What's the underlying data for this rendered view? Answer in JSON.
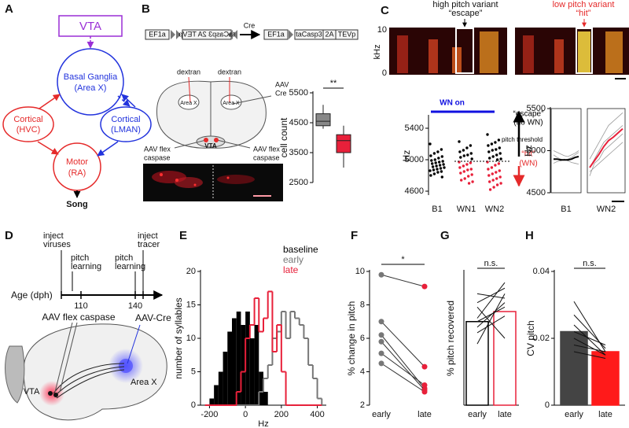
{
  "panel_labels": [
    "A",
    "B",
    "C",
    "D",
    "E",
    "F",
    "G",
    "H"
  ],
  "diagram_a": {
    "nodes": [
      "VTA",
      "Basal Ganglia",
      "(Area X)",
      "Cortical",
      "(HVC)",
      "Cortical",
      "(LMAN)",
      "Motor",
      "(RA)",
      "Song"
    ]
  },
  "panel_b": {
    "construct": [
      "EF1a",
      "taCasp3 2A TEVp",
      "Cre",
      "EF1a",
      "taCasp3",
      "2A",
      "TEVp"
    ],
    "labels": [
      "dextran",
      "dextran",
      "AAV",
      "Cre",
      "Area X",
      "Area X",
      "VTA",
      "AAV flex",
      "caspase",
      "AAV flex",
      "caspase"
    ]
  },
  "panel_c": {
    "labels": [
      "high pitch variant",
      "“escape”",
      "low pitch variant",
      "“hit”",
      "kHz",
      "10",
      "0"
    ]
  },
  "panel_d": {
    "labels": [
      "inject",
      "viruses",
      "pitch",
      "learning",
      "pitch",
      "learning",
      "inject",
      "tracer",
      "Age (dph)",
      "110",
      "140",
      "AAV flex caspase",
      "AAV-Cre",
      "VTA",
      "Area X"
    ]
  },
  "chart_data": [
    {
      "type": "box",
      "ylabel": "cell count",
      "annotation": "**",
      "ylim": [
        2500,
        5500
      ],
      "yticks": [
        2500,
        3500,
        4500,
        5500
      ],
      "boxes": [
        {
          "color": "#888888",
          "whislo": 4300,
          "q1": 4400,
          "med": 4550,
          "q3": 4800,
          "whishi": 5100
        },
        {
          "color": "#e8203a",
          "whislo": 3000,
          "q1": 3500,
          "med": 3900,
          "q3": 4100,
          "whishi": 4400
        }
      ]
    },
    {
      "type": "strip",
      "ylabel": "Hz",
      "ylim": [
        4550,
        5550
      ],
      "yticks": [
        4600,
        5000,
        5400
      ],
      "categories": [
        "B1",
        "WN1",
        "WN2"
      ],
      "threshold": 4980,
      "wn_color": "#1010e0",
      "annotations": [
        "WN on",
        "“escape”",
        "(no WN)",
        "pitch threshold",
        "“hit”",
        "(WN)"
      ],
      "series": [
        {
          "color": "#000000",
          "values": [
            [
              5200,
              5130,
              5100,
              5080,
              5050,
              5040,
              5020,
              5000,
              4990,
              4980,
              4970,
              4960,
              4950,
              4940,
              4930,
              4920,
              4910,
              4900,
              4890,
              4880,
              4870,
              4860,
              4850,
              4840,
              4820,
              4800,
              4780
            ],
            [
              5230,
              5180,
              5150,
              5120,
              5100,
              5080,
              5060,
              5050,
              5030,
              5010
            ],
            [
              5320,
              5250,
              5220,
              5200,
              5180,
              5150,
              5130,
              5120,
              5100,
              5080,
              5060,
              5040,
              5020,
              5010,
              5000
            ]
          ]
        },
        {
          "color": "#e8203a",
          "values": [
            [],
            [
              4970,
              4960,
              4940,
              4920,
              4900,
              4880,
              4870,
              4850,
              4830,
              4810,
              4790,
              4760,
              4740,
              4720,
              4700
            ],
            [
              4970,
              4950,
              4930,
              4900,
              4880,
              4860,
              4840,
              4820,
              4800,
              4780,
              4760,
              4740,
              4720,
              4700,
              4680,
              4650,
              4620
            ]
          ]
        }
      ]
    },
    {
      "type": "line",
      "ylabel": "Hz",
      "ylim": [
        4500,
        5500
      ],
      "yticks": [
        4500,
        5000,
        5500
      ],
      "panels": [
        {
          "label": "B1",
          "series": [
            {
              "color": "#9a9a9a",
              "values": [
                4950,
                4920,
                4900,
                4890,
                4900,
                4920,
                4950,
                4980
              ]
            },
            {
              "color": "#9a9a9a",
              "values": [
                4850,
                4870,
                4880,
                4900,
                4880,
                4860,
                4850,
                4840
              ]
            },
            {
              "color": "#9a9a9a",
              "values": [
                5000,
                4980,
                4960,
                4940,
                4930,
                4950,
                4970,
                5000
              ]
            },
            {
              "color": "#000000",
              "values": [
                4900,
                4900,
                4890,
                4890,
                4890,
                4900,
                4920,
                4930
              ]
            }
          ]
        },
        {
          "label": "WN2",
          "series": [
            {
              "color": "#9a9a9a",
              "values": [
                4800,
                4900,
                5000,
                5100,
                5150,
                5200,
                5250,
                5300
              ]
            },
            {
              "color": "#9a9a9a",
              "values": [
                4700,
                4850,
                4900,
                5000,
                5050,
                5100,
                5150,
                5200
              ]
            },
            {
              "color": "#9a9a9a",
              "values": [
                4900,
                5000,
                5100,
                5200,
                5300,
                5350,
                5400,
                5450
              ]
            },
            {
              "color": "#9a9a9a",
              "values": [
                4750,
                4800,
                4850,
                4900,
                4950,
                5000,
                5050,
                5100
              ]
            },
            {
              "color": "#e8203a",
              "values": [
                4800,
                4880,
                4960,
                5050,
                5120,
                5160,
                5210,
                5260
              ]
            }
          ]
        }
      ]
    },
    {
      "type": "histogram",
      "xlabel": "Hz",
      "ylabel": "number of syllables",
      "xlim": [
        -250,
        450
      ],
      "xticks": [
        -200,
        0,
        200,
        400
      ],
      "ylim": [
        0,
        20
      ],
      "yticks": [
        0,
        5,
        10,
        15,
        20
      ],
      "bins": [
        -225,
        -200,
        -175,
        -150,
        -125,
        -100,
        -75,
        -50,
        -25,
        0,
        25,
        50,
        75,
        100,
        125,
        150,
        175,
        200,
        225,
        250,
        275,
        300,
        325,
        350,
        375,
        400,
        425
      ],
      "series": [
        {
          "name": "baseline",
          "color": "#000000",
          "fill": true,
          "values": [
            0,
            1,
            3,
            5,
            8,
            11,
            13,
            14,
            12,
            14,
            10,
            12,
            5,
            2,
            0,
            0,
            0,
            0,
            0,
            0,
            0,
            0,
            0,
            0,
            0,
            0
          ]
        },
        {
          "name": "early",
          "color": "#777777",
          "fill": false,
          "values": [
            0,
            0,
            0,
            0,
            0,
            0,
            0,
            0,
            0,
            0,
            0,
            0,
            2,
            4,
            6,
            10,
            11,
            14,
            10,
            14,
            13,
            12,
            10,
            6,
            4,
            1
          ]
        },
        {
          "name": "late",
          "color": "#e8203a",
          "fill": false,
          "values": [
            0,
            0,
            0,
            0,
            0,
            0,
            0,
            2,
            5,
            10,
            12,
            16,
            11,
            13,
            17,
            8,
            12,
            5,
            0,
            0,
            0,
            0,
            0,
            0,
            0,
            0
          ]
        }
      ]
    },
    {
      "type": "paired",
      "ylabel": "% change in pitch",
      "annotation": "*",
      "categories": [
        "early",
        "late"
      ],
      "ylim": [
        2,
        10
      ],
      "yticks": [
        2,
        4,
        6,
        8,
        10
      ],
      "colors": [
        "#777777",
        "#e8203a"
      ],
      "values": [
        [
          9.8,
          9.1
        ],
        [
          7,
          4.3
        ],
        [
          6.2,
          3
        ],
        [
          5.8,
          2.9
        ],
        [
          5.1,
          3.2
        ],
        [
          4.5,
          2.8
        ]
      ]
    },
    {
      "type": "bar",
      "ylabel": "% pitch recovered",
      "annotation": "n.s.",
      "categories": [
        "early",
        "late"
      ],
      "ylim": [
        0,
        120
      ],
      "values": [
        75,
        84
      ],
      "colors": [
        "#000000",
        "#e8203a"
      ],
      "filled": false,
      "pairs": [
        [
          55,
          100
        ],
        [
          70,
          92
        ],
        [
          78,
          110
        ],
        [
          88,
          60
        ],
        [
          75,
          88
        ],
        [
          100,
          96
        ],
        [
          92,
          105
        ],
        [
          65,
          80
        ]
      ]
    },
    {
      "type": "bar",
      "ylabel": "CV pitch",
      "annotation": "n.s.",
      "categories": [
        "early",
        "late"
      ],
      "ylim": [
        0,
        0.04
      ],
      "yticks": [
        0,
        0.02,
        0.04
      ],
      "values": [
        0.022,
        0.016
      ],
      "colors": [
        "#444444",
        "#ff1a1a"
      ],
      "filled": true,
      "pairs": [
        [
          0.031,
          0.016
        ],
        [
          0.027,
          0.017
        ],
        [
          0.024,
          0.015
        ],
        [
          0.022,
          0.018
        ],
        [
          0.02,
          0.015
        ],
        [
          0.018,
          0.016
        ],
        [
          0.016,
          0.014
        ]
      ]
    }
  ]
}
